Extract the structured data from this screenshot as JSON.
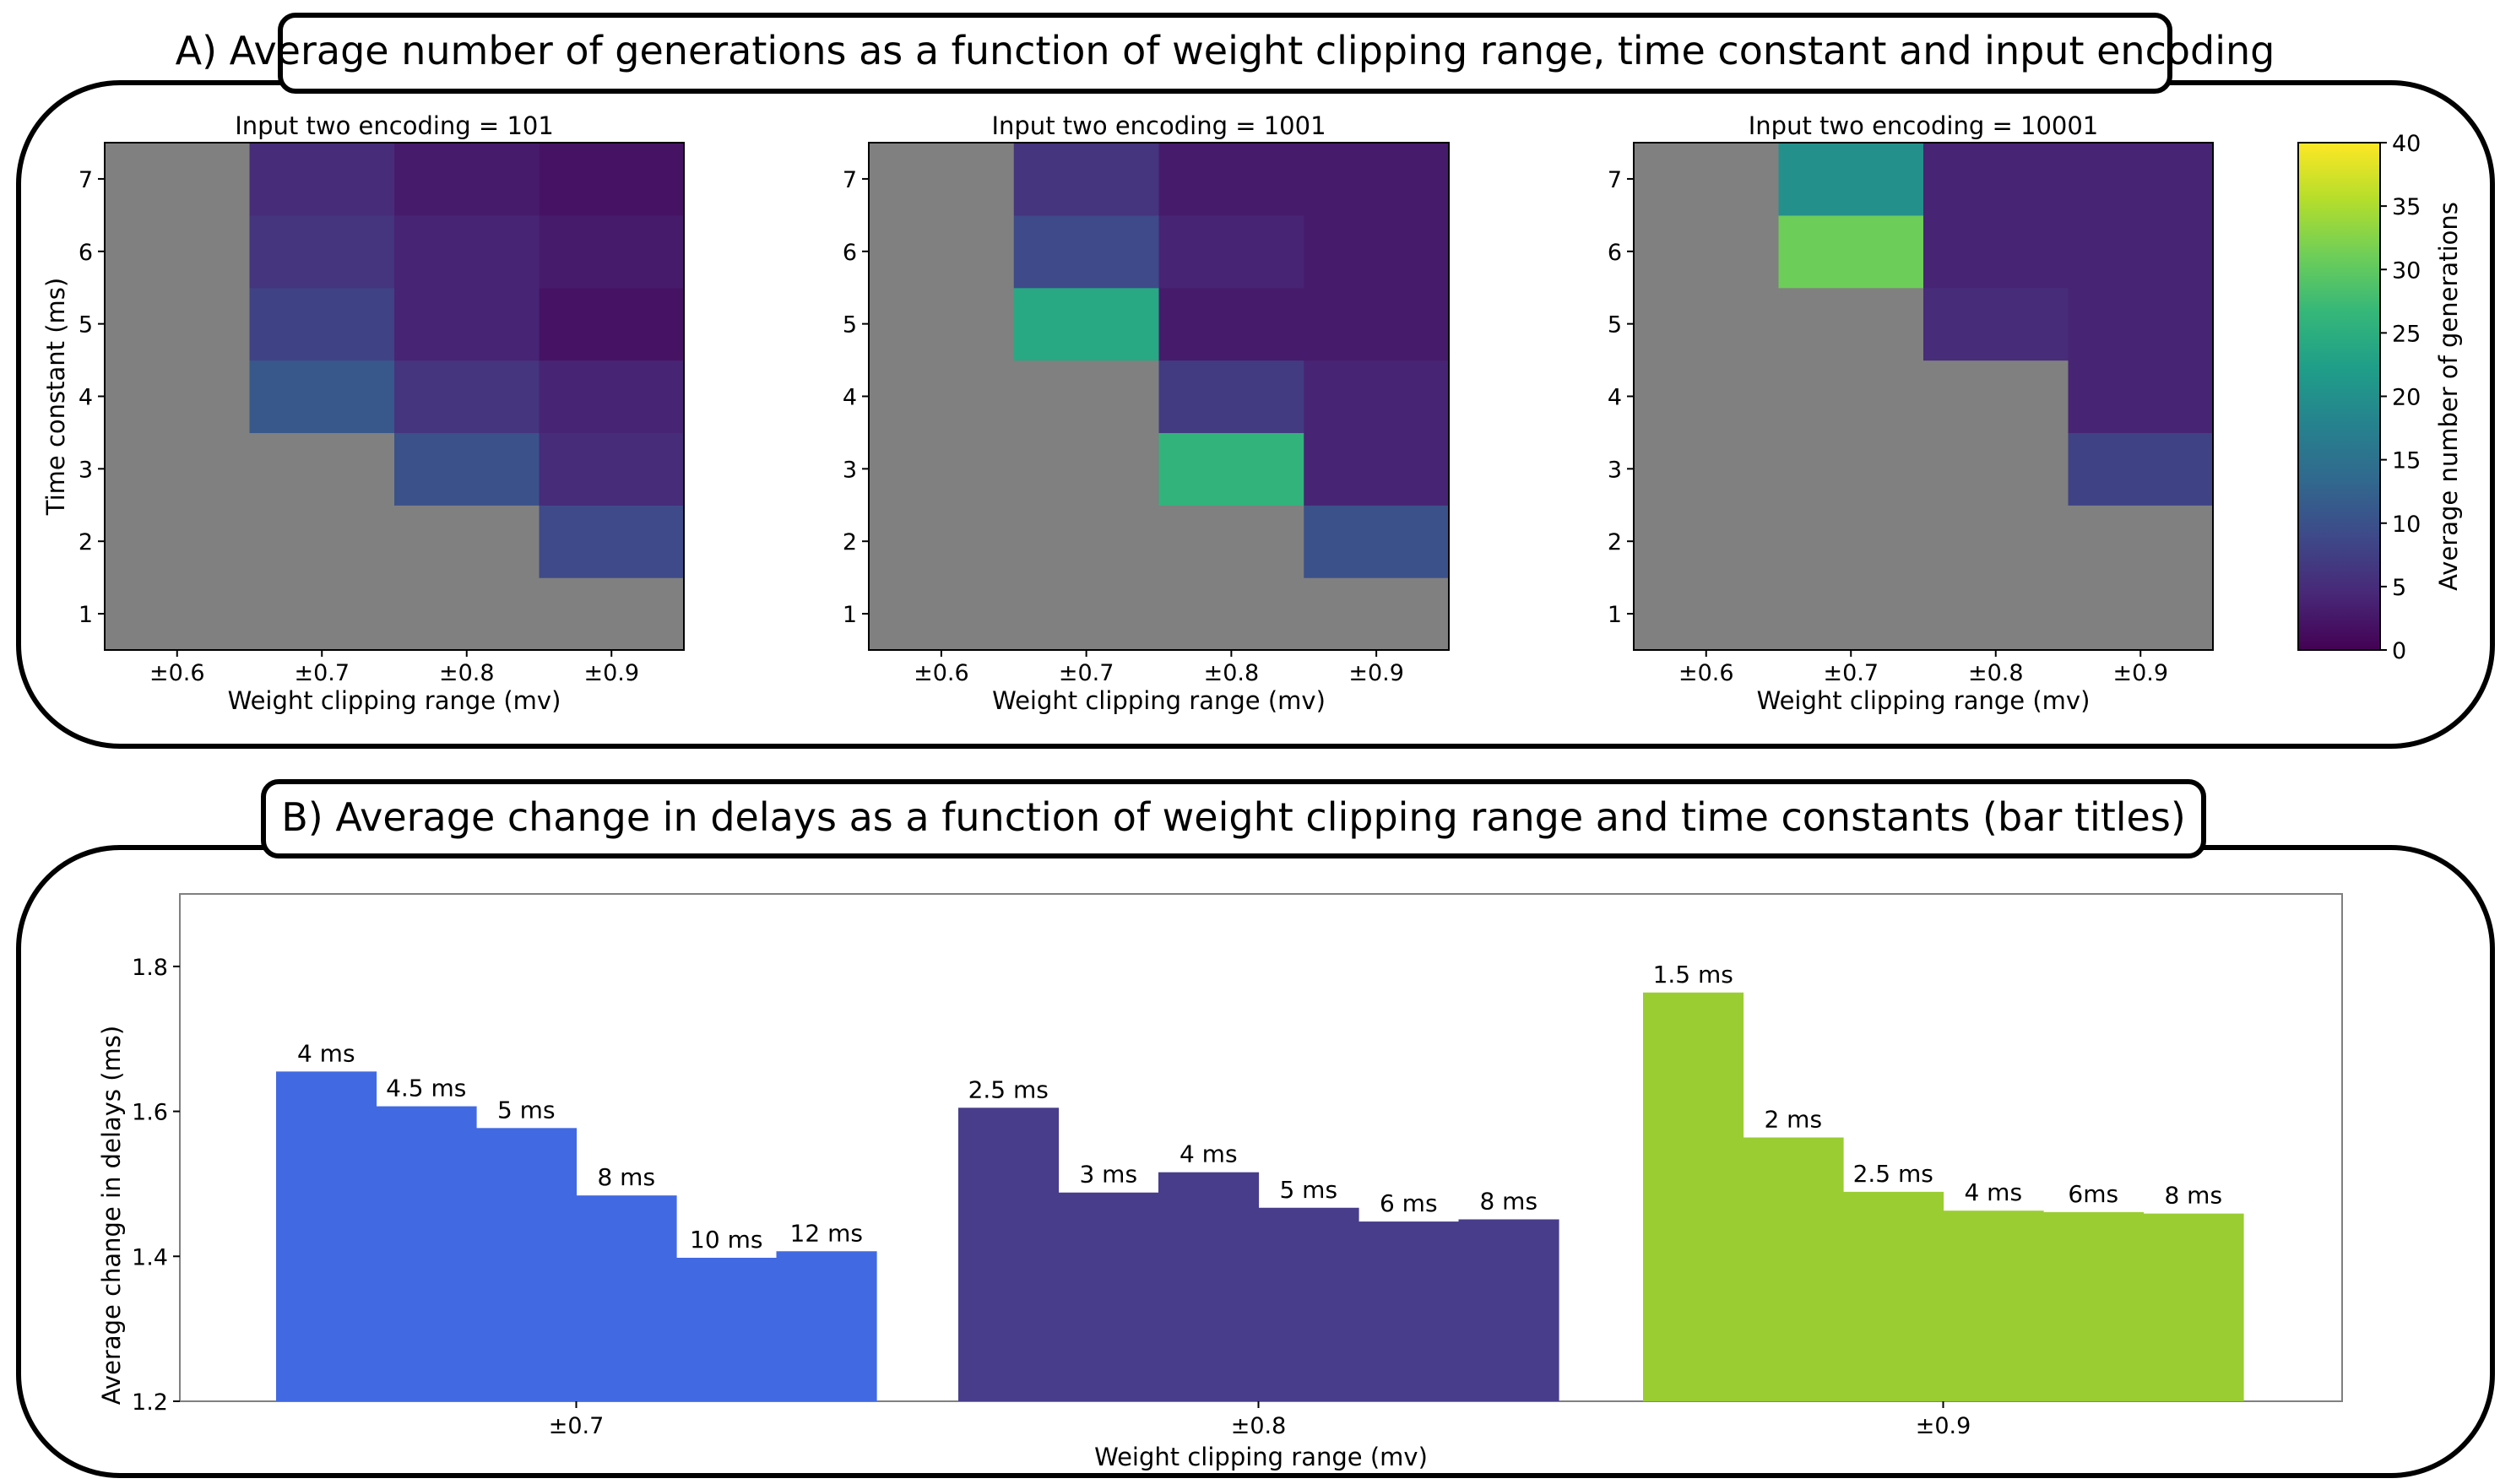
{
  "panel_a": {
    "title": "A) Average number of generations as a function of weight clipping range, time constant and input encoding"
  },
  "panel_b": {
    "title": "B) Average change in delays as a function of weight clipping range and time constants (bar titles)"
  },
  "chart_data": [
    {
      "type": "heatmap",
      "title": "Input two encoding = 101",
      "xlabel": "Weight clipping range (mv)",
      "ylabel": "Time constant (ms)",
      "x_categories": [
        "±0.6",
        "±0.7",
        "±0.8",
        "±0.9"
      ],
      "y_categories": [
        "1",
        "2",
        "3",
        "4",
        "5",
        "6",
        "7"
      ],
      "values": [
        [
          null,
          null,
          null,
          null
        ],
        [
          null,
          null,
          null,
          9
        ],
        [
          null,
          null,
          10,
          5
        ],
        [
          null,
          11,
          6,
          4
        ],
        [
          null,
          8,
          4,
          2
        ],
        [
          null,
          6,
          4,
          3
        ],
        [
          null,
          5,
          3,
          2
        ]
      ],
      "color_scale": "viridis",
      "null_color": "#808080"
    },
    {
      "type": "heatmap",
      "title": "Input two encoding = 1001",
      "xlabel": "Weight clipping range (mv)",
      "x_categories": [
        "±0.6",
        "±0.7",
        "±0.8",
        "±0.9"
      ],
      "y_categories": [
        "1",
        "2",
        "3",
        "4",
        "5",
        "6",
        "7"
      ],
      "values": [
        [
          null,
          null,
          null,
          null
        ],
        [
          null,
          null,
          null,
          10
        ],
        [
          null,
          null,
          26,
          4
        ],
        [
          null,
          null,
          7,
          4
        ],
        [
          null,
          24,
          3,
          3
        ],
        [
          null,
          9,
          4,
          3
        ],
        [
          null,
          6,
          3,
          3
        ]
      ],
      "color_scale": "viridis",
      "null_color": "#808080"
    },
    {
      "type": "heatmap",
      "title": "Input two encoding = 10001",
      "xlabel": "Weight clipping range (mv)",
      "x_categories": [
        "±0.6",
        "±0.7",
        "±0.8",
        "±0.9"
      ],
      "y_categories": [
        "1",
        "2",
        "3",
        "4",
        "5",
        "6",
        "7"
      ],
      "values": [
        [
          null,
          null,
          null,
          null
        ],
        [
          null,
          null,
          null,
          null
        ],
        [
          null,
          null,
          null,
          8
        ],
        [
          null,
          null,
          null,
          4
        ],
        [
          null,
          null,
          5,
          4
        ],
        [
          null,
          31,
          4,
          4
        ],
        [
          null,
          20,
          4,
          4
        ]
      ],
      "color_scale": "viridis",
      "null_color": "#808080",
      "colorbar": {
        "label": "Average number of generations",
        "min": 0,
        "max": 40,
        "ticks": [
          "0",
          "5",
          "10",
          "15",
          "20",
          "25",
          "30",
          "35",
          "40"
        ]
      }
    },
    {
      "type": "bar",
      "xlabel": "Weight clipping range (mv)",
      "ylabel": "Average change in delays (ms)",
      "ylim": [
        1.2,
        1.9
      ],
      "yticks": [
        "1.2",
        "1.4",
        "1.6",
        "1.8"
      ],
      "groups": [
        {
          "name": "±0.7",
          "color": "#4169E1",
          "bars": [
            {
              "label": "4 ms",
              "value": 1.655
            },
            {
              "label": "4.5 ms",
              "value": 1.607
            },
            {
              "label": "5 ms",
              "value": 1.577
            },
            {
              "label": "8 ms",
              "value": 1.484
            },
            {
              "label": "10 ms",
              "value": 1.398
            },
            {
              "label": "12 ms",
              "value": 1.407
            }
          ]
        },
        {
          "name": "±0.8",
          "color": "#483D8B",
          "bars": [
            {
              "label": "2.5 ms",
              "value": 1.605
            },
            {
              "label": "3 ms",
              "value": 1.488
            },
            {
              "label": "4 ms",
              "value": 1.516
            },
            {
              "label": "5 ms",
              "value": 1.467
            },
            {
              "label": "6 ms",
              "value": 1.448
            },
            {
              "label": "8 ms",
              "value": 1.451
            }
          ]
        },
        {
          "name": "±0.9",
          "color": "#9ACD32",
          "bars": [
            {
              "label": "1.5 ms",
              "value": 1.764
            },
            {
              "label": "2 ms",
              "value": 1.564
            },
            {
              "label": "2.5 ms",
              "value": 1.489
            },
            {
              "label": "4 ms",
              "value": 1.463
            },
            {
              "label": "6ms",
              "value": 1.461
            },
            {
              "label": "8 ms",
              "value": 1.459
            }
          ]
        }
      ]
    }
  ]
}
